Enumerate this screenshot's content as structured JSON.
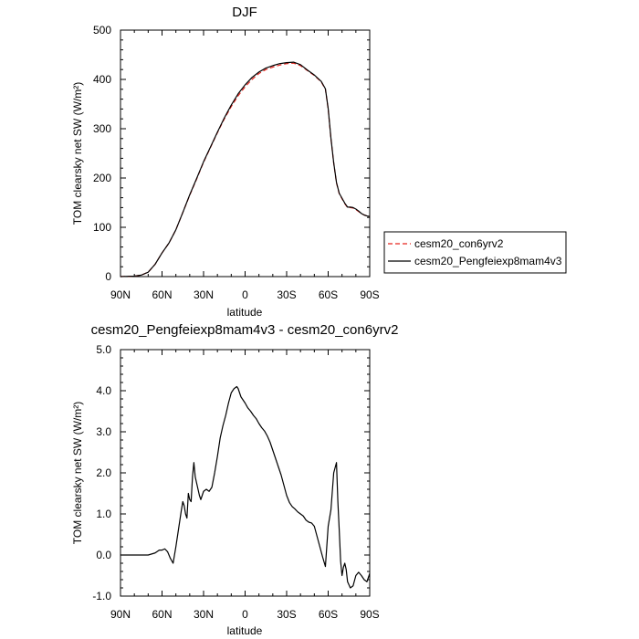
{
  "chart_data": [
    {
      "type": "line",
      "title": "DJF",
      "xlabel": "latitude",
      "ylabel": "TOM clearsky net SW (W/m²)",
      "x_ticks": [
        {
          "value": 90,
          "label": "90N"
        },
        {
          "value": 60,
          "label": "60N"
        },
        {
          "value": 30,
          "label": "30N"
        },
        {
          "value": 0,
          "label": "0"
        },
        {
          "value": -30,
          "label": "30S"
        },
        {
          "value": -60,
          "label": "60S"
        },
        {
          "value": -90,
          "label": "90S"
        }
      ],
      "xlim": [
        90,
        -90
      ],
      "ylim": [
        0,
        500
      ],
      "y_ticks": [
        0,
        100,
        200,
        300,
        400,
        500
      ],
      "y_tick_labels": [
        "0",
        "100",
        "200",
        "300",
        "400",
        "500"
      ],
      "grid": false,
      "legend_position": "right",
      "x": [
        90,
        80,
        75,
        70,
        65,
        60,
        55,
        50,
        45,
        40,
        35,
        30,
        25,
        20,
        15,
        10,
        5,
        0,
        -5,
        -10,
        -15,
        -20,
        -25,
        -30,
        -35,
        -40,
        -45,
        -50,
        -55,
        -58,
        -60,
        -62,
        -64,
        -66,
        -68,
        -70,
        -72,
        -74,
        -76,
        -78,
        -80,
        -82,
        -84,
        -86,
        -88,
        -90
      ],
      "series": [
        {
          "name": "cesm20_con6yrv2",
          "color": "#e8251e",
          "dash": "dashed",
          "values": [
            0,
            1,
            3,
            9,
            25,
            48,
            68,
            95,
            130,
            165,
            198,
            232,
            262,
            292,
            320,
            345,
            367,
            385,
            400,
            412,
            420,
            425,
            429,
            432,
            433,
            428,
            418,
            408,
            395,
            380,
            340,
            280,
            230,
            190,
            168,
            158,
            148,
            140,
            140,
            139,
            136,
            132,
            128,
            125,
            123,
            122
          ]
        },
        {
          "name": "cesm20_Pengfeiexp8mam4v3",
          "color": "#000000",
          "dash": "solid",
          "values": [
            0,
            1,
            3,
            9,
            25,
            48,
            68,
            95,
            130,
            166,
            199,
            233,
            263,
            293,
            322,
            348,
            371,
            389,
            404,
            415,
            423,
            428,
            432,
            434,
            435,
            430,
            419,
            409,
            396,
            381,
            341,
            281,
            231,
            191,
            169,
            159,
            149,
            141,
            141,
            140,
            137,
            133,
            128,
            125,
            123,
            122
          ]
        }
      ]
    },
    {
      "type": "line",
      "title": "cesm20_Pengfeiexp8mam4v3 - cesm20_con6yrv2",
      "xlabel": "latitude",
      "ylabel": "TOM clearsky net SW (W/m²)",
      "x_ticks": [
        {
          "value": 90,
          "label": "90N"
        },
        {
          "value": 60,
          "label": "60N"
        },
        {
          "value": 30,
          "label": "30N"
        },
        {
          "value": 0,
          "label": "0"
        },
        {
          "value": -30,
          "label": "30S"
        },
        {
          "value": -60,
          "label": "60S"
        },
        {
          "value": -90,
          "label": "90S"
        }
      ],
      "xlim": [
        90,
        -90
      ],
      "ylim": [
        -1.0,
        5.0
      ],
      "y_ticks": [
        -1,
        0,
        1,
        2,
        3,
        4,
        5
      ],
      "y_tick_labels": [
        "-1.0",
        "0.0",
        "1.0",
        "2.0",
        "3.0",
        "4.0",
        "5.0"
      ],
      "grid": false,
      "x": [
        90,
        70,
        65,
        62,
        60,
        58,
        56,
        54,
        52,
        50,
        48,
        46,
        45,
        44,
        43,
        42,
        41,
        40,
        39,
        38,
        37,
        36,
        35,
        34,
        33,
        32,
        30,
        28,
        26,
        24,
        22,
        20,
        18,
        16,
        14,
        12,
        10,
        8,
        6,
        5,
        4,
        3,
        2,
        0,
        -2,
        -4,
        -6,
        -8,
        -10,
        -12,
        -14,
        -16,
        -18,
        -20,
        -22,
        -24,
        -26,
        -28,
        -30,
        -32,
        -34,
        -36,
        -38,
        -40,
        -42,
        -44,
        -46,
        -48,
        -50,
        -52,
        -54,
        -56,
        -58,
        -60,
        -62,
        -64,
        -66,
        -67,
        -68,
        -69,
        -70,
        -71,
        -72,
        -73,
        -74,
        -76,
        -78,
        -80,
        -82,
        -84,
        -86,
        -88,
        -90
      ],
      "values": [
        0.0,
        0.0,
        0.05,
        0.12,
        0.12,
        0.15,
        0.08,
        -0.08,
        -0.2,
        0.2,
        0.65,
        1.1,
        1.3,
        1.2,
        1.0,
        0.9,
        1.5,
        1.35,
        1.3,
        1.9,
        2.25,
        1.9,
        1.75,
        1.6,
        1.45,
        1.35,
        1.55,
        1.6,
        1.55,
        1.65,
        2.0,
        2.4,
        2.85,
        3.15,
        3.4,
        3.7,
        3.95,
        4.05,
        4.1,
        4.05,
        3.95,
        3.85,
        3.8,
        3.7,
        3.58,
        3.5,
        3.4,
        3.32,
        3.2,
        3.1,
        3.02,
        2.9,
        2.75,
        2.55,
        2.35,
        2.15,
        1.95,
        1.7,
        1.45,
        1.28,
        1.18,
        1.12,
        1.05,
        1.0,
        0.95,
        0.85,
        0.8,
        0.78,
        0.7,
        0.45,
        0.2,
        -0.05,
        -0.28,
        0.7,
        1.1,
        2.0,
        2.25,
        1.3,
        0.6,
        -0.15,
        -0.5,
        -0.3,
        -0.2,
        -0.35,
        -0.65,
        -0.8,
        -0.75,
        -0.5,
        -0.42,
        -0.5,
        -0.6,
        -0.65,
        -0.45
      ]
    }
  ]
}
